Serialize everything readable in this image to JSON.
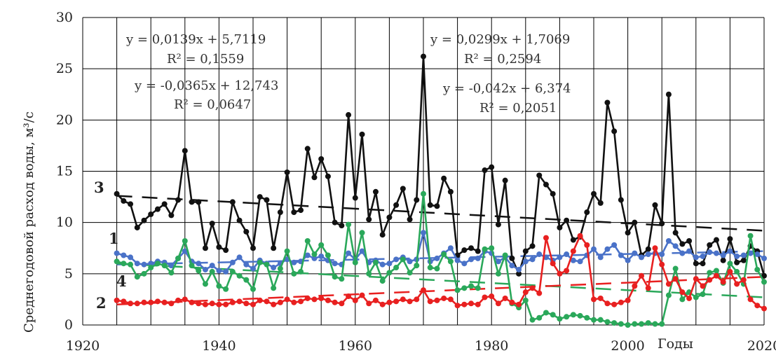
{
  "chart_data": {
    "type": "line",
    "ylabel": "Среднегодовой расход воды, м³/с",
    "xlabel": "Годы",
    "xlim": [
      1920,
      2020
    ],
    "ylim": [
      0,
      30
    ],
    "xticks": [
      1920,
      1940,
      1960,
      1980,
      2000,
      2020
    ],
    "yticks": [
      0,
      5,
      10,
      15,
      20,
      25,
      30
    ],
    "grid": true,
    "series": [
      {
        "name": "3",
        "color": "#111111",
        "x": [
          1925,
          1926,
          1927,
          1928,
          1929,
          1930,
          1931,
          1932,
          1933,
          1934,
          1935,
          1936,
          1937,
          1938,
          1939,
          1940,
          1941,
          1942,
          1943,
          1944,
          1945,
          1946,
          1947,
          1948,
          1949,
          1950,
          1951,
          1952,
          1953,
          1954,
          1955,
          1956,
          1957,
          1958,
          1959,
          1960,
          1961,
          1962,
          1963,
          1964,
          1965,
          1966,
          1967,
          1968,
          1969,
          1970,
          1971,
          1972,
          1973,
          1974,
          1975,
          1976,
          1977,
          1978,
          1979,
          1980,
          1981,
          1982,
          1983,
          1984,
          1985,
          1986,
          1987,
          1988,
          1989,
          1990,
          1991,
          1992,
          1993,
          1994,
          1995,
          1996,
          1997,
          1998,
          1999,
          2000,
          2001,
          2002,
          2003,
          2004,
          2005,
          2006,
          2007,
          2008,
          2009,
          2010,
          2011,
          2012,
          2013,
          2014,
          2015,
          2016,
          2017,
          2018,
          2019,
          2020
        ],
        "y": [
          12.8,
          12.1,
          11.8,
          9.5,
          10.2,
          10.8,
          11.3,
          11.8,
          10.7,
          12.2,
          17.0,
          12.0,
          12.0,
          7.5,
          9.9,
          7.6,
          7.3,
          12.0,
          10.2,
          9.1,
          7.5,
          12.5,
          12.2,
          7.5,
          11.0,
          14.9,
          11.0,
          11.2,
          17.2,
          14.4,
          16.2,
          14.5,
          10.0,
          9.7,
          20.5,
          12.4,
          18.6,
          10.3,
          13.0,
          8.8,
          10.5,
          11.7,
          13.3,
          10.3,
          12.2,
          26.2,
          11.7,
          11.6,
          14.3,
          13.0,
          6.8,
          7.3,
          7.5,
          7.2,
          15.1,
          15.4,
          9.8,
          14.1,
          6.5,
          5.0,
          7.2,
          7.7,
          14.6,
          13.7,
          12.8,
          9.5,
          10.2,
          8.3,
          8.6,
          11.0,
          12.8,
          11.9,
          21.7,
          18.9,
          12.2,
          9.0,
          10.0,
          6.8,
          7.4,
          11.7,
          9.9,
          22.5,
          9.0,
          7.9,
          8.2,
          6.0,
          6.0,
          7.8,
          8.3,
          6.3,
          8.4,
          6.1,
          6.3,
          7.7,
          7.2,
          4.8
        ]
      },
      {
        "name": "1",
        "color": "#4a72c8",
        "x": [
          1925,
          1926,
          1927,
          1928,
          1929,
          1930,
          1931,
          1932,
          1933,
          1934,
          1935,
          1936,
          1937,
          1938,
          1939,
          1940,
          1941,
          1942,
          1943,
          1944,
          1945,
          1946,
          1947,
          1948,
          1949,
          1950,
          1951,
          1952,
          1953,
          1954,
          1955,
          1956,
          1957,
          1958,
          1959,
          1960,
          1961,
          1962,
          1963,
          1964,
          1965,
          1966,
          1967,
          1968,
          1969,
          1970,
          1971,
          1972,
          1973,
          1974,
          1975,
          1976,
          1977,
          1978,
          1979,
          1980,
          1981,
          1982,
          1983,
          1984,
          1985,
          1986,
          1987,
          1988,
          1989,
          1990,
          1991,
          1992,
          1993,
          1994,
          1995,
          1996,
          1997,
          1998,
          1999,
          2000,
          2001,
          2002,
          2003,
          2004,
          2005,
          2006,
          2007,
          2008,
          2009,
          2010,
          2011,
          2012,
          2013,
          2014,
          2015,
          2016,
          2017,
          2018,
          2019,
          2020
        ],
        "y": [
          7.0,
          6.8,
          6.6,
          6.0,
          5.9,
          6.0,
          6.2,
          6.1,
          5.8,
          6.5,
          7.2,
          6.2,
          6.0,
          5.4,
          5.8,
          5.3,
          5.2,
          6.1,
          6.6,
          5.9,
          5.5,
          6.3,
          6.0,
          5.6,
          6.0,
          6.4,
          6.1,
          6.2,
          6.8,
          6.5,
          6.7,
          6.3,
          6.0,
          5.9,
          7.0,
          6.4,
          7.2,
          6.1,
          6.3,
          5.9,
          6.0,
          6.4,
          6.6,
          6.2,
          6.4,
          9.0,
          6.2,
          6.5,
          7.0,
          7.5,
          6.3,
          6.0,
          6.4,
          6.5,
          7.2,
          7.0,
          6.2,
          6.6,
          5.8,
          5.4,
          6.2,
          6.4,
          6.9,
          6.6,
          6.3,
          6.6,
          6.9,
          6.3,
          6.2,
          6.8,
          7.4,
          6.6,
          7.4,
          7.8,
          6.8,
          6.3,
          7.0,
          6.6,
          6.9,
          7.0,
          6.9,
          8.2,
          7.7,
          7.0,
          7.2,
          6.6,
          6.7,
          7.1,
          7.0,
          6.8,
          7.2,
          6.7,
          6.8,
          7.0,
          6.9,
          6.5
        ]
      },
      {
        "name": "4",
        "color": "#2aa85a",
        "x": [
          1925,
          1926,
          1927,
          1928,
          1929,
          1930,
          1931,
          1932,
          1933,
          1934,
          1935,
          1936,
          1937,
          1938,
          1939,
          1940,
          1941,
          1942,
          1943,
          1944,
          1945,
          1946,
          1947,
          1948,
          1949,
          1950,
          1951,
          1952,
          1953,
          1954,
          1955,
          1956,
          1957,
          1958,
          1959,
          1960,
          1961,
          1962,
          1963,
          1964,
          1965,
          1966,
          1967,
          1968,
          1969,
          1970,
          1971,
          1972,
          1973,
          1974,
          1975,
          1976,
          1977,
          1978,
          1979,
          1980,
          1981,
          1982,
          1983,
          1984,
          1985,
          1986,
          1987,
          1988,
          1989,
          1990,
          1991,
          1992,
          1993,
          1994,
          1995,
          1996,
          1997,
          1998,
          1999,
          2000,
          2001,
          2002,
          2003,
          2004,
          2005,
          2006,
          2007,
          2008,
          2009,
          2010,
          2011,
          2012,
          2013,
          2014,
          2015,
          2016,
          2017,
          2018,
          2019,
          2020
        ],
        "y": [
          6.2,
          6.0,
          5.9,
          4.7,
          5.0,
          5.6,
          6.0,
          5.8,
          5.1,
          6.5,
          8.2,
          5.8,
          5.3,
          4.0,
          5.2,
          3.8,
          3.5,
          5.2,
          4.8,
          4.4,
          3.5,
          6.1,
          5.9,
          3.6,
          5.5,
          7.2,
          5.0,
          5.2,
          8.2,
          6.9,
          7.8,
          6.8,
          4.7,
          4.5,
          9.8,
          6.1,
          9.0,
          5.0,
          6.1,
          4.3,
          5.1,
          5.6,
          6.4,
          5.1,
          5.8,
          12.8,
          5.6,
          5.5,
          6.9,
          6.2,
          3.4,
          3.6,
          3.8,
          3.6,
          7.4,
          7.5,
          5.0,
          6.8,
          2.1,
          1.7,
          2.4,
          0.5,
          0.7,
          1.2,
          1.0,
          0.6,
          0.8,
          1.0,
          0.9,
          0.7,
          0.5,
          0.5,
          0.3,
          0.2,
          0.1,
          0.0,
          0.1,
          0.1,
          0.2,
          0.1,
          0.1,
          2.9,
          5.5,
          2.5,
          3.2,
          2.7,
          3.0,
          5.1,
          5.3,
          4.1,
          6.0,
          5.2,
          4.0,
          8.7,
          5.4,
          4.2
        ]
      },
      {
        "name": "2",
        "color": "#e82020",
        "x": [
          1925,
          1926,
          1927,
          1928,
          1929,
          1930,
          1931,
          1932,
          1933,
          1934,
          1935,
          1936,
          1937,
          1938,
          1939,
          1940,
          1941,
          1942,
          1943,
          1944,
          1945,
          1946,
          1947,
          1948,
          1949,
          1950,
          1951,
          1952,
          1953,
          1954,
          1955,
          1956,
          1957,
          1958,
          1959,
          1960,
          1961,
          1962,
          1963,
          1964,
          1965,
          1966,
          1967,
          1968,
          1969,
          1970,
          1971,
          1972,
          1973,
          1974,
          1975,
          1976,
          1977,
          1978,
          1979,
          1980,
          1981,
          1982,
          1983,
          1984,
          1985,
          1986,
          1987,
          1988,
          1989,
          1990,
          1991,
          1992,
          1993,
          1994,
          1995,
          1996,
          1997,
          1998,
          1999,
          2000,
          2001,
          2002,
          2003,
          2004,
          2005,
          2006,
          2007,
          2008,
          2009,
          2010,
          2011,
          2012,
          2013,
          2014,
          2015,
          2016,
          2017,
          2018,
          2019,
          2020
        ],
        "y": [
          2.4,
          2.3,
          2.1,
          2.1,
          2.2,
          2.2,
          2.3,
          2.2,
          2.1,
          2.4,
          2.5,
          2.2,
          2.1,
          2.0,
          2.1,
          2.0,
          2.0,
          2.2,
          2.3,
          2.1,
          2.0,
          2.4,
          2.3,
          2.0,
          2.2,
          2.5,
          2.2,
          2.3,
          2.6,
          2.5,
          2.6,
          2.4,
          2.2,
          2.1,
          2.8,
          2.4,
          2.9,
          2.1,
          2.4,
          2.0,
          2.2,
          2.3,
          2.5,
          2.3,
          2.5,
          3.4,
          2.3,
          2.4,
          2.6,
          2.5,
          1.9,
          2.0,
          2.1,
          2.0,
          2.7,
          2.8,
          2.1,
          2.6,
          2.2,
          2.0,
          3.2,
          3.6,
          3.1,
          8.5,
          6.0,
          5.0,
          5.3,
          7.2,
          8.7,
          7.8,
          2.5,
          2.6,
          2.1,
          2.0,
          2.2,
          2.4,
          3.8,
          4.8,
          3.6,
          7.5,
          5.9,
          4.0,
          4.5,
          3.2,
          2.6,
          4.5,
          3.8,
          4.4,
          4.8,
          4.2,
          5.2,
          4.0,
          4.4,
          2.5,
          1.9,
          1.6
        ]
      }
    ],
    "trend_lines": [
      {
        "name": "3",
        "color": "#111111",
        "x": [
          1925,
          2020
        ],
        "y": [
          12.6,
          9.2
        ]
      },
      {
        "name": "1",
        "color": "#4a72c8",
        "x": [
          1925,
          2020
        ],
        "y": [
          5.9,
          7.2
        ]
      },
      {
        "name": "4",
        "color": "#2aa85a",
        "x": [
          1925,
          2020
        ],
        "y": [
          6.0,
          2.7
        ]
      },
      {
        "name": "2",
        "color": "#e82020",
        "x": [
          1925,
          2020
        ],
        "y": [
          2.0,
          4.7
        ]
      }
    ],
    "annotations": [
      "y = 0,0139x + 5,7119",
      "R² = 0,1559",
      "y = -0,0365x + 12,743",
      "R² = 0,0647",
      "y = 0,0299x + 1,7069",
      "R² = 0,2594",
      "y = -0,042x + 6,374",
      "R² = 0,2051"
    ],
    "curve_labels": [
      "3",
      "1",
      "4",
      "2"
    ]
  }
}
